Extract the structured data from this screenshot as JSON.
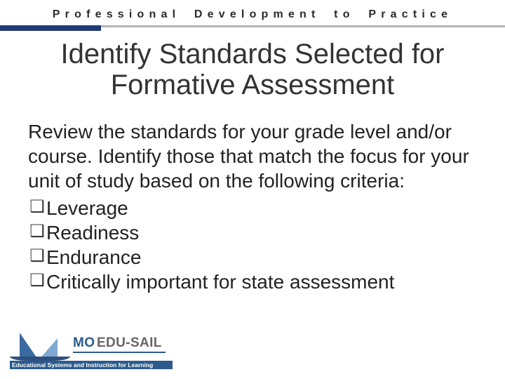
{
  "colors": {
    "header_text": "#2b2b2b",
    "rule_grey": "#b4b4b4",
    "rule_navy": "#1f3b73",
    "title": "#333333",
    "body": "#222222",
    "bullet_box": "#3a3a3a",
    "logo_sail1": "#3a6aa0",
    "logo_sail2": "#7fa9d0",
    "logo_hull": "#2f4f7f",
    "brand_mo": "#2c5b8c",
    "brand_edu": "#666666",
    "tagline_bg": "#2c5b8c",
    "tagline_text": "#ffffff"
  },
  "typography": {
    "header_fontsize": 16,
    "header_letter_spacing_em": 0.45,
    "title_fontsize": 40,
    "body_fontsize": 28,
    "tagline_fontsize": 8.5
  },
  "header": "Professional Development to Practice",
  "title_line1": "Identify Standards Selected for",
  "title_line2": "Formative Assessment",
  "intro": "Review the standards for your grade level and/or course. Identify those that match the focus for your unit of study based on the following criteria:",
  "bullets": {
    "0": "Leverage",
    "1": "Readiness",
    "2": "Endurance",
    "3": "Critically important for state assessment"
  },
  "bullet_glyph": "❑",
  "logo": {
    "brand_mo": "MO",
    "brand_edu": "EDU-SAIL",
    "tagline": "Educational Systems and Instruction for Learning"
  }
}
